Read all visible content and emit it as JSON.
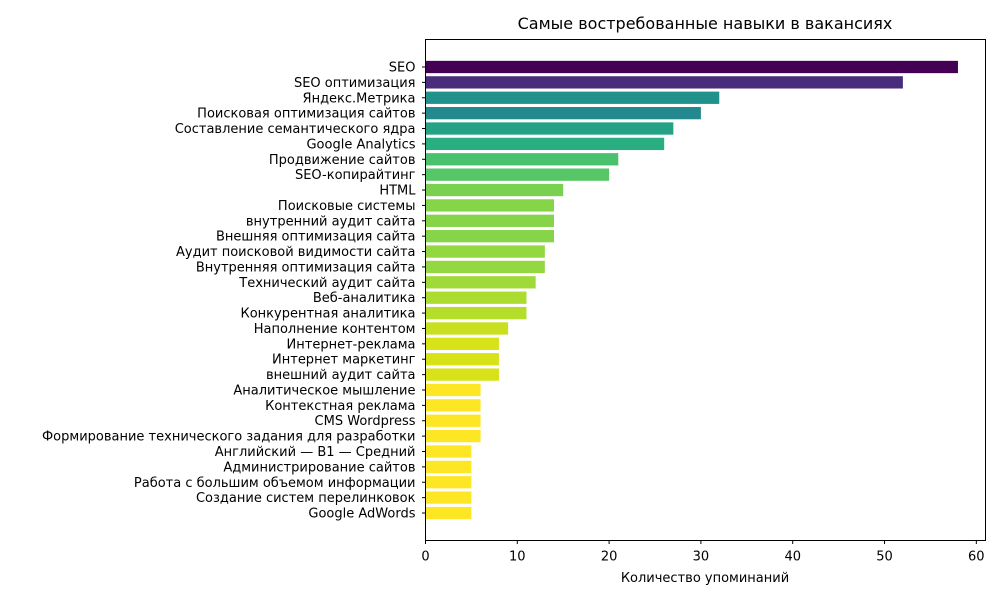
{
  "chart_data": {
    "type": "bar",
    "orientation": "horizontal",
    "title": "Самые востребованные навыки в вакансиях",
    "xlabel": "Количество упоминаний",
    "ylabel": "",
    "xlim": [
      0,
      61
    ],
    "x_ticks": [
      0,
      10,
      20,
      30,
      40,
      50,
      60
    ],
    "grid": false,
    "colormap": "viridis",
    "categories": [
      "SEO",
      "SEO оптимизация",
      "Яндекс.Метрика",
      "Поисковая оптимизация сайтов",
      "Составление семантического ядра",
      "Google Analytics",
      "Продвижение сайтов",
      "SEO-копирайтинг",
      "HTML",
      "Поисковые системы",
      "внутренний аудит сайта",
      "Внешняя оптимизация сайта",
      "Аудит поисковой видимости сайта",
      "Внутренняя оптимизация сайта",
      "Технический аудит сайта",
      "Веб-аналитика",
      "Конкурентная аналитика",
      "Наполнение контентом",
      "Интернет-реклама",
      "Интернет маркетинг",
      "внешний аудит сайта",
      "Аналитическое мышление",
      "Контекстная реклама",
      "CMS Wordpress",
      "Формирование технического задания для разработки",
      "Английский — B1 — Средний",
      "Администрирование сайтов",
      "Работа с большим объемом информации",
      "Создание систем перелинковок",
      "Google AdWords"
    ],
    "values": [
      58,
      52,
      32,
      30,
      27,
      26,
      21,
      20,
      15,
      14,
      14,
      14,
      13,
      13,
      12,
      11,
      11,
      9,
      8,
      8,
      8,
      6,
      6,
      6,
      6,
      5,
      5,
      5,
      5,
      5
    ],
    "colors": [
      "#440154",
      "#472d7b",
      "#21918c",
      "#23898e",
      "#25a185",
      "#28ae80",
      "#4ac16d",
      "#56c667",
      "#7ad151",
      "#86d549",
      "#86d549",
      "#86d549",
      "#93d741",
      "#93d741",
      "#a0da39",
      "#addc30",
      "#b5de2b",
      "#c8e020",
      "#d8e219",
      "#d8e219",
      "#d8e219",
      "#fde725",
      "#fde725",
      "#fde725",
      "#fde725",
      "#fde725",
      "#fde725",
      "#fde725",
      "#fde725",
      "#fde725"
    ]
  }
}
